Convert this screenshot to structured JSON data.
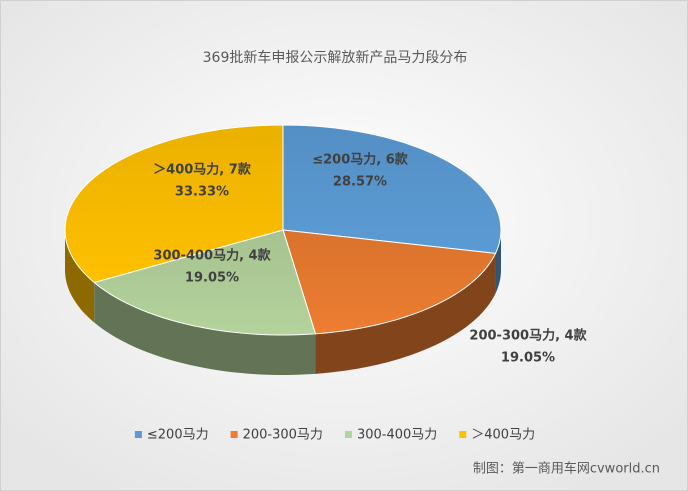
{
  "chart_data": {
    "type": "pie3d",
    "title": "369批新车申报公示解放新产品马力段分布",
    "categories": [
      "≤200马力",
      "200-300马力",
      "300-400马力",
      "＞400马力"
    ],
    "values": [
      28.57,
      19.05,
      19.05,
      33.33
    ],
    "value_labels": [
      "28.57%",
      "19.05%",
      "19.05%",
      "33.33%"
    ],
    "labels": [
      "≤200马力, 6款",
      "200-300马力, 4款",
      "300-400马力, 4款",
      "＞400马力, 7款"
    ],
    "colors": [
      "#5b9bd5",
      "#ed7d31",
      "#b4d39c",
      "#ffc000"
    ],
    "legend": "bottom",
    "source": "制图：第一商用车网cvworld.cn"
  }
}
